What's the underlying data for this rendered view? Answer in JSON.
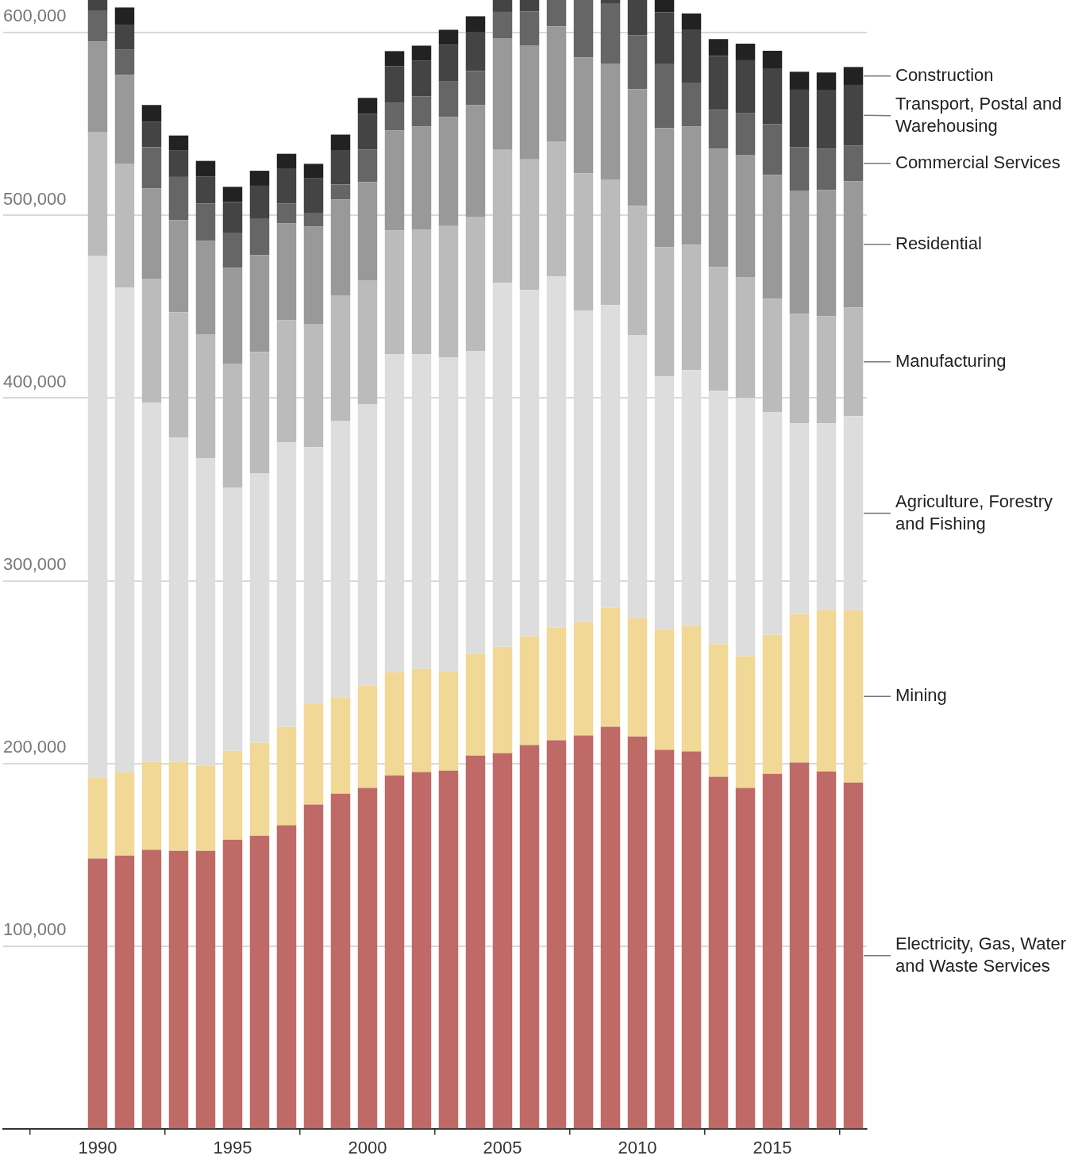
{
  "chart_data": {
    "type": "bar",
    "stacked": true,
    "grid": "y",
    "x": [
      1990,
      1991,
      1992,
      1993,
      1994,
      1995,
      1996,
      1997,
      1998,
      1999,
      2000,
      2001,
      2002,
      2003,
      2004,
      2005,
      2006,
      2007,
      2008,
      2009,
      2010,
      2011,
      2012,
      2013,
      2014,
      2015,
      2016,
      2017,
      2018
    ],
    "xlim": [
      1986.5,
      2018.5
    ],
    "xticks": [
      1990,
      1995,
      2000,
      2005,
      2010,
      2015
    ],
    "ylim": [
      0,
      618000
    ],
    "yticks": [
      {
        "value": 100000,
        "label": "100,000"
      },
      {
        "value": 200000,
        "label": "200,000"
      },
      {
        "value": 300000,
        "label": "300,000"
      },
      {
        "value": 400000,
        "label": "400,000"
      },
      {
        "value": 500000,
        "label": "500,000"
      },
      {
        "value": 600000,
        "label": "600,000"
      }
    ],
    "series": [
      {
        "name": "Electricity, Gas, Water and Waste Services",
        "color": "#bf6a67",
        "values": [
          147800,
          149500,
          152600,
          152100,
          152100,
          158200,
          160400,
          166100,
          177400,
          183400,
          186500,
          193400,
          195200,
          196000,
          204300,
          205600,
          210000,
          212600,
          215200,
          220000,
          214700,
          207400,
          206500,
          192600,
          186500,
          194300,
          200400,
          195600,
          189500
        ]
      },
      {
        "name": "Mining",
        "color": "#f2d896",
        "values": [
          44300,
          45600,
          48300,
          48700,
          46500,
          48700,
          50900,
          53900,
          55600,
          52600,
          56100,
          56500,
          56500,
          54300,
          55600,
          58200,
          59600,
          61700,
          62200,
          65200,
          64800,
          66100,
          68700,
          72600,
          72200,
          76100,
          81300,
          88200,
          94300
        ]
      },
      {
        "name": "Agriculture, Forestry and Fishing",
        "color": "#dddddd",
        "values": [
          285900,
          265500,
          196700,
          177600,
          168600,
          144200,
          147600,
          155700,
          140100,
          151600,
          154100,
          174100,
          172300,
          172000,
          165900,
          199300,
          189600,
          192300,
          170400,
          165800,
          155000,
          138300,
          140100,
          138800,
          141400,
          121900,
          104500,
          102400,
          106300
        ]
      },
      {
        "name": "Manufacturing",
        "color": "#bbbbbb",
        "values": [
          67800,
          67800,
          67800,
          68700,
          67800,
          67800,
          66400,
          66900,
          67500,
          68700,
          67800,
          67800,
          68200,
          72200,
          73500,
          72800,
          71500,
          74000,
          75300,
          68700,
          70800,
          70800,
          68700,
          67800,
          66200,
          62100,
          60000,
          58600,
          59500
        ]
      },
      {
        "name": "Residential",
        "color": "#999999",
        "values": [
          49500,
          48600,
          49500,
          50400,
          51100,
          52500,
          53100,
          53100,
          53400,
          52400,
          53800,
          54800,
          56600,
          59500,
          61200,
          61200,
          62500,
          63000,
          63500,
          63500,
          63900,
          65300,
          64800,
          64800,
          66900,
          67800,
          67500,
          69200,
          69200
        ]
      },
      {
        "name": "Commercial Services",
        "color": "#666666",
        "values": [
          17000,
          14000,
          22500,
          23600,
          20400,
          19200,
          20100,
          10800,
          7500,
          8300,
          17900,
          15300,
          16500,
          19300,
          18600,
          14400,
          18600,
          14400,
          31400,
          32700,
          29600,
          35300,
          24000,
          21300,
          22700,
          27900,
          23800,
          22500,
          19500
        ]
      },
      {
        "name": "Transport, Postal and Warehousing",
        "color": "#444444",
        "values": [
          5700,
          13500,
          14000,
          14700,
          14900,
          16900,
          17800,
          19300,
          18800,
          18800,
          19500,
          19900,
          19500,
          20200,
          21500,
          6500,
          6200,
          null,
          null,
          2100,
          19200,
          28200,
          29100,
          29600,
          29100,
          30500,
          31400,
          32000,
          33200
        ]
      },
      {
        "name": "Construction",
        "color": "#222222",
        "values": [
          null,
          9400,
          9100,
          8000,
          8500,
          8200,
          8200,
          8000,
          8000,
          8500,
          8700,
          8200,
          8200,
          8200,
          8500,
          null,
          null,
          null,
          null,
          null,
          null,
          6600,
          8700,
          9100,
          9100,
          9600,
          9800,
          9800,
          9800
        ]
      }
    ]
  }
}
